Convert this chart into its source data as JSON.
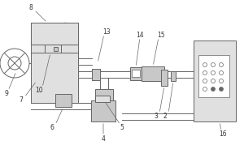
{
  "lc": "#666666",
  "fc_light": "#e0e0e0",
  "fc_mid": "#c8c8c8",
  "fc_dark": "#b0b0b0",
  "bg": "white",
  "lw": 0.7
}
